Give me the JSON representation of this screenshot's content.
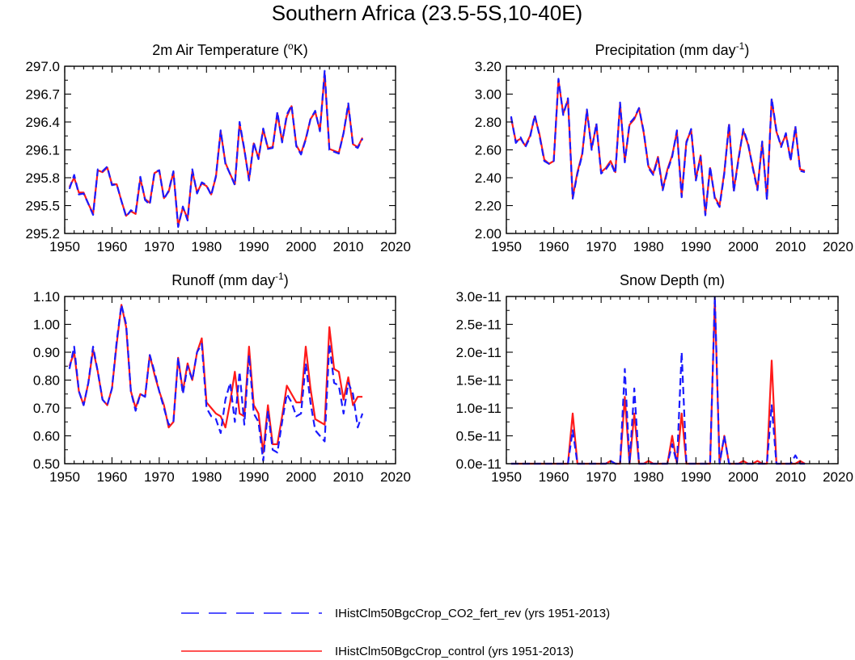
{
  "figure": {
    "title": "Southern Africa (23.5-5S,10-40E)"
  },
  "colors": {
    "co2_fert_rev": "#1a1aff",
    "control": "#ff1a1a",
    "axis": "#000000"
  },
  "legend": [
    {
      "series": "co2_fert_rev",
      "label": "IHistClm50BgcCrop_CO2_fert_rev (yrs 1951-2013)",
      "line": "dashed"
    },
    {
      "series": "control",
      "label": "IHistClm50BgcCrop_control (yrs 1951-2013)",
      "line": "solid"
    }
  ],
  "chart_data": [
    {
      "type": "line",
      "title": "2m Air Temperature (",
      "title_sup": "o",
      "title_after": "K)",
      "xlim": [
        1950,
        2020
      ],
      "xticks": [
        1950,
        1960,
        1970,
        1980,
        1990,
        2000,
        2010,
        2020
      ],
      "ylim": [
        295.2,
        297.0
      ],
      "yticks": [
        295.2,
        295.5,
        295.8,
        296.1,
        296.4,
        296.7,
        297.0
      ],
      "ytick_labels": [
        "295.2",
        "295.5",
        "295.8",
        "296.1",
        "296.4",
        "296.7",
        "297.0"
      ],
      "x_start": 1951,
      "series": [
        {
          "key": "co2_fert_rev",
          "style": "dashed",
          "values": [
            295.68,
            295.83,
            295.62,
            295.63,
            295.52,
            295.4,
            295.89,
            295.87,
            295.92,
            295.72,
            295.73,
            295.55,
            295.38,
            295.45,
            295.42,
            295.81,
            295.56,
            295.51,
            295.86,
            295.88,
            295.57,
            295.66,
            295.87,
            295.27,
            295.49,
            295.34,
            295.89,
            295.63,
            295.75,
            295.72,
            295.61,
            295.82,
            296.31,
            295.95,
            295.84,
            295.72,
            296.4,
            296.11,
            295.77,
            296.18,
            296.0,
            296.33,
            296.11,
            296.12,
            296.51,
            296.18,
            296.48,
            296.58,
            296.14,
            296.05,
            296.21,
            296.43,
            296.52,
            296.3,
            296.95,
            296.1,
            296.08,
            296.06,
            296.28,
            296.6,
            296.15,
            296.12,
            296.22
          ]
        },
        {
          "key": "control",
          "style": "solid",
          "values": [
            295.7,
            295.8,
            295.64,
            295.64,
            295.52,
            295.41,
            295.88,
            295.86,
            295.91,
            295.73,
            295.73,
            295.55,
            295.39,
            295.44,
            295.41,
            295.79,
            295.57,
            295.53,
            295.85,
            295.88,
            295.58,
            295.65,
            295.86,
            295.28,
            295.48,
            295.36,
            295.87,
            295.64,
            295.74,
            295.71,
            295.62,
            295.81,
            296.3,
            295.96,
            295.84,
            295.73,
            296.38,
            296.1,
            295.78,
            296.17,
            296.01,
            296.32,
            296.12,
            296.13,
            296.49,
            296.19,
            296.46,
            296.57,
            296.15,
            296.06,
            296.22,
            296.43,
            296.51,
            296.31,
            296.92,
            296.11,
            296.09,
            296.07,
            296.28,
            296.58,
            296.16,
            296.13,
            296.23
          ]
        }
      ]
    },
    {
      "type": "line",
      "title": "Precipitation (mm day",
      "title_sup": "-1",
      "title_after": ")",
      "xlim": [
        1950,
        2020
      ],
      "xticks": [
        1950,
        1960,
        1970,
        1980,
        1990,
        2000,
        2010,
        2020
      ],
      "ylim": [
        2.0,
        3.2
      ],
      "yticks": [
        2.0,
        2.2,
        2.4,
        2.6,
        2.8,
        3.0,
        3.2
      ],
      "ytick_labels": [
        "2.00",
        "2.20",
        "2.40",
        "2.60",
        "2.80",
        "3.00",
        "3.20"
      ],
      "x_start": 1951,
      "series": [
        {
          "key": "co2_fert_rev",
          "style": "dashed",
          "values": [
            2.84,
            2.65,
            2.69,
            2.62,
            2.69,
            2.85,
            2.7,
            2.52,
            2.5,
            2.52,
            3.11,
            2.85,
            2.97,
            2.25,
            2.43,
            2.56,
            2.89,
            2.6,
            2.79,
            2.43,
            2.46,
            2.51,
            2.43,
            2.94,
            2.51,
            2.79,
            2.83,
            2.9,
            2.73,
            2.47,
            2.42,
            2.54,
            2.31,
            2.45,
            2.55,
            2.74,
            2.26,
            2.65,
            2.75,
            2.38,
            2.55,
            2.13,
            2.48,
            2.25,
            2.19,
            2.43,
            2.79,
            2.3,
            2.53,
            2.75,
            2.65,
            2.47,
            2.31,
            2.66,
            2.24,
            2.97,
            2.74,
            2.62,
            2.72,
            2.52,
            2.77,
            2.45,
            2.44
          ]
        },
        {
          "key": "control",
          "style": "solid",
          "values": [
            2.83,
            2.66,
            2.68,
            2.63,
            2.7,
            2.84,
            2.71,
            2.53,
            2.5,
            2.52,
            3.1,
            2.86,
            2.96,
            2.26,
            2.44,
            2.57,
            2.88,
            2.61,
            2.78,
            2.44,
            2.47,
            2.52,
            2.44,
            2.93,
            2.52,
            2.78,
            2.82,
            2.9,
            2.72,
            2.48,
            2.43,
            2.55,
            2.32,
            2.46,
            2.56,
            2.73,
            2.27,
            2.66,
            2.74,
            2.39,
            2.56,
            2.14,
            2.47,
            2.26,
            2.2,
            2.44,
            2.78,
            2.31,
            2.54,
            2.74,
            2.64,
            2.48,
            2.32,
            2.65,
            2.25,
            2.96,
            2.73,
            2.63,
            2.71,
            2.53,
            2.76,
            2.46,
            2.45
          ]
        }
      ]
    },
    {
      "type": "line",
      "title": "Runoff (mm day",
      "title_sup": "-1",
      "title_after": ")",
      "xlim": [
        1950,
        2020
      ],
      "xticks": [
        1950,
        1960,
        1970,
        1980,
        1990,
        2000,
        2010,
        2020
      ],
      "ylim": [
        0.5,
        1.1
      ],
      "yticks": [
        0.5,
        0.6,
        0.7,
        0.8,
        0.9,
        1.0,
        1.1
      ],
      "ytick_labels": [
        "0.50",
        "0.60",
        "0.70",
        "0.80",
        "0.90",
        "1.00",
        "1.10"
      ],
      "x_start": 1951,
      "series": [
        {
          "key": "co2_fert_rev",
          "style": "dashed",
          "values": [
            0.84,
            0.92,
            0.76,
            0.71,
            0.79,
            0.92,
            0.83,
            0.73,
            0.71,
            0.77,
            0.94,
            1.07,
            1.0,
            0.76,
            0.69,
            0.75,
            0.74,
            0.89,
            0.83,
            0.76,
            0.7,
            0.64,
            0.65,
            0.88,
            0.75,
            0.85,
            0.8,
            0.9,
            0.93,
            0.7,
            0.67,
            0.66,
            0.61,
            0.73,
            0.79,
            0.65,
            0.83,
            0.64,
            0.89,
            0.68,
            0.65,
            0.51,
            0.69,
            0.55,
            0.54,
            0.65,
            0.75,
            0.72,
            0.67,
            0.68,
            0.86,
            0.72,
            0.62,
            0.6,
            0.58,
            0.93,
            0.79,
            0.78,
            0.68,
            0.79,
            0.75,
            0.63,
            0.68
          ]
        },
        {
          "key": "control",
          "style": "solid",
          "values": [
            0.85,
            0.9,
            0.76,
            0.71,
            0.79,
            0.91,
            0.83,
            0.73,
            0.71,
            0.77,
            0.93,
            1.07,
            0.99,
            0.76,
            0.7,
            0.75,
            0.74,
            0.89,
            0.82,
            0.76,
            0.71,
            0.63,
            0.65,
            0.88,
            0.76,
            0.86,
            0.8,
            0.9,
            0.95,
            0.72,
            0.7,
            0.68,
            0.67,
            0.63,
            0.72,
            0.83,
            0.68,
            0.67,
            0.92,
            0.71,
            0.68,
            0.54,
            0.71,
            0.57,
            0.57,
            0.67,
            0.78,
            0.75,
            0.72,
            0.72,
            0.92,
            0.77,
            0.66,
            0.65,
            0.64,
            0.99,
            0.84,
            0.83,
            0.73,
            0.81,
            0.71,
            0.74,
            0.74
          ]
        }
      ]
    },
    {
      "type": "line",
      "title": "Snow Depth (m)",
      "title_sup": "",
      "title_after": "",
      "xlim": [
        1950,
        2020
      ],
      "xticks": [
        1950,
        1960,
        1970,
        1980,
        1990,
        2000,
        2010,
        2020
      ],
      "ylim": [
        0,
        3e-11
      ],
      "yticks": [
        0,
        5e-12,
        1e-11,
        1.5e-11,
        2e-11,
        2.5e-11,
        3e-11
      ],
      "ytick_labels": [
        "0.0e-11",
        "0.5e-11",
        "1.0e-11",
        "1.5e-11",
        "2.0e-11",
        "2.5e-11",
        "3.0e-11"
      ],
      "x_start": 1951,
      "series": [
        {
          "key": "co2_fert_rev",
          "style": "dashed",
          "values": [
            0,
            0,
            0,
            0,
            0,
            0,
            0,
            0,
            0,
            0,
            0,
            0,
            0,
            6e-12,
            0,
            0,
            0,
            0,
            0,
            0,
            0,
            5e-13,
            0,
            0,
            1.7e-11,
            0,
            1.35e-11,
            0,
            0,
            0,
            0,
            0,
            0,
            0,
            3.5e-12,
            0,
            2e-11,
            0,
            0,
            0,
            0,
            0,
            0,
            3e-11,
            0,
            5e-12,
            0,
            0,
            0,
            0,
            0,
            0,
            0,
            0,
            0,
            1.05e-11,
            0,
            0,
            0,
            0,
            1.5e-12,
            0,
            0
          ]
        },
        {
          "key": "control",
          "style": "solid",
          "values": [
            0,
            0,
            0,
            0,
            0,
            0,
            0,
            0,
            0,
            0,
            0,
            0,
            0,
            9e-12,
            0,
            0,
            0,
            0,
            0,
            0,
            0,
            5e-13,
            0,
            0,
            1.2e-11,
            0,
            9e-12,
            0,
            0,
            5e-13,
            0,
            0,
            0,
            0,
            5e-12,
            0,
            9e-12,
            0,
            0,
            0,
            0,
            0,
            0,
            2.95e-11,
            0,
            5e-12,
            0,
            0,
            0,
            5e-13,
            0,
            0,
            5e-13,
            0,
            0,
            1.85e-11,
            0,
            0,
            0,
            0,
            0,
            5e-13,
            0
          ]
        }
      ]
    }
  ]
}
